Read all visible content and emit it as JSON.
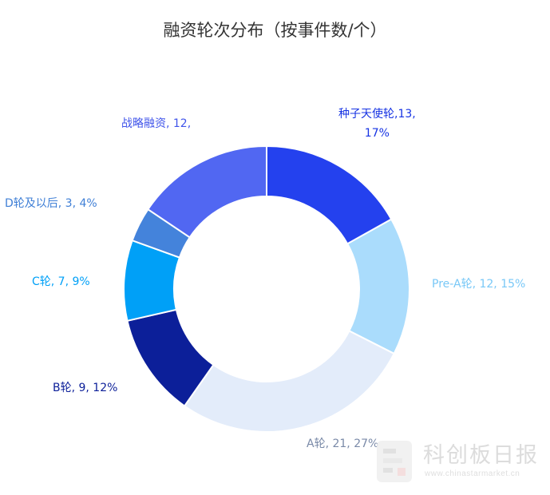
{
  "chart_data": {
    "type": "pie",
    "variant": "donut",
    "title": "融资轮次分布（按事件数/个）",
    "legend": "none",
    "slices": [
      {
        "name": "种子天使轮",
        "value": 13,
        "percent": "17%",
        "label": "种子天使轮,13,",
        "label_line2": "17%",
        "color": "#2441ee"
      },
      {
        "name": "Pre-A轮",
        "value": 12,
        "percent": "15%",
        "label": "Pre-A轮, 12, 15%",
        "color": "#aadcfc"
      },
      {
        "name": "A轮",
        "value": 21,
        "percent": "27%",
        "label": "A轮, 21, 27%",
        "color": "#e3ecfa"
      },
      {
        "name": "B轮",
        "value": 9,
        "percent": "12%",
        "label": "B轮, 9, 12%",
        "color": "#0c1f99"
      },
      {
        "name": "C轮",
        "value": 7,
        "percent": "9%",
        "label": "C轮, 7, 9%",
        "color": "#00a0f7"
      },
      {
        "name": "D轮及以后",
        "value": 3,
        "percent": "4%",
        "label": "D轮及以后, 3, 4%",
        "color": "#4483db"
      },
      {
        "name": "战略融资",
        "value": 12,
        "percent": "",
        "label": "战略融资, 12,",
        "color": "#5167f2"
      }
    ]
  },
  "label_colors": {
    "种子天使轮": "#1633e3",
    "Pre-A轮": "#79c8f7",
    "A轮": "#7a8aa8",
    "B轮": "#0c1f99",
    "C轮": "#00a0f7",
    "D轮及以后": "#3f7fd6",
    "战略融资": "#4054ea"
  },
  "watermark": {
    "brand": "科创板日报",
    "url": "www.chinastarmarket.cn"
  }
}
